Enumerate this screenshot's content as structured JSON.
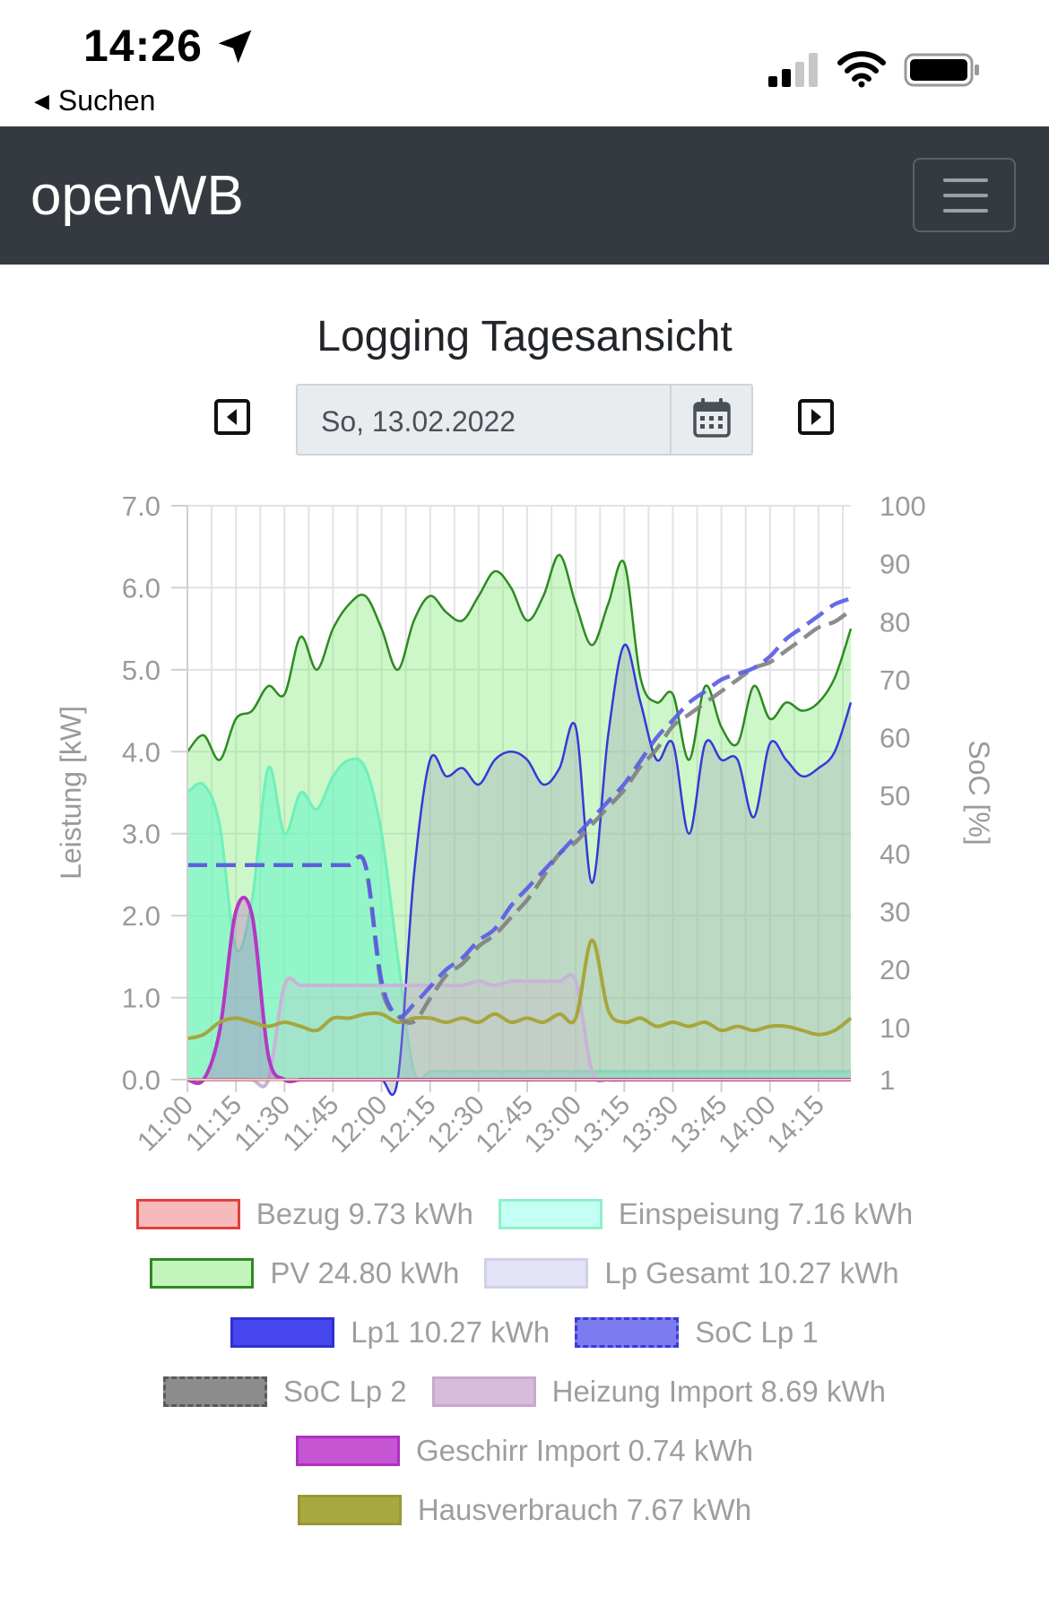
{
  "status_bar": {
    "time": "14:26",
    "back_label": "Suchen"
  },
  "navbar": {
    "brand": "openWB"
  },
  "page": {
    "title": "Logging Tagesansicht",
    "date_value": "So, 13.02.2022"
  },
  "chart_data": {
    "type": "line",
    "title": "",
    "ylabel": "Leistung [kW]",
    "y2label": "SoC [%]",
    "ylim": [
      0,
      7
    ],
    "y2ticks": [
      "100",
      "90",
      "80",
      "70",
      "60",
      "50",
      "40",
      "30",
      "20",
      "10",
      "1"
    ],
    "yticks": [
      "7.0",
      "6.0",
      "5.0",
      "4.0",
      "3.0",
      "2.0",
      "1.0",
      "0.0"
    ],
    "xticks": [
      "11:00",
      "11:15",
      "11:30",
      "11:45",
      "12:00",
      "12:15",
      "12:30",
      "12:45",
      "13:00",
      "13:15",
      "13:30",
      "13:45",
      "14:00",
      "14:15"
    ],
    "x_minutes_from_start": [
      0,
      5,
      10,
      15,
      20,
      25,
      30,
      35,
      40,
      45,
      50,
      55,
      60,
      65,
      70,
      75,
      80,
      85,
      90,
      95,
      100,
      105,
      110,
      115,
      120,
      125,
      130,
      135,
      140,
      145,
      150,
      155,
      160,
      165,
      170,
      175,
      180,
      185,
      190,
      195,
      200,
      205
    ],
    "series": [
      {
        "name": "Bezug 9.73 kWh",
        "unit": "kW",
        "color": "#e74c3c",
        "values": [
          0,
          0,
          0,
          0,
          0,
          0,
          0,
          0,
          0,
          0,
          0,
          0,
          0,
          0,
          0,
          0,
          0,
          0,
          0,
          0,
          0,
          0,
          0,
          0,
          0,
          0,
          0,
          0,
          0,
          0,
          0,
          0,
          0,
          0,
          0,
          0,
          0,
          0,
          0,
          0,
          0,
          0
        ]
      },
      {
        "name": "Einspeisung 7.16 kWh",
        "unit": "kW",
        "color": "#7ef2c8",
        "values": [
          3.5,
          3.6,
          3.1,
          1.6,
          2.2,
          3.8,
          3.0,
          3.5,
          3.3,
          3.7,
          3.9,
          3.8,
          3.0,
          1.5,
          0.1,
          0.1,
          0.1,
          0.1,
          0.1,
          0.1,
          0.1,
          0.1,
          0.1,
          0.1,
          0.1,
          0.1,
          0.1,
          0.1,
          0.1,
          0.1,
          0.1,
          0.1,
          0.1,
          0.1,
          0.1,
          0.1,
          0.1,
          0.1,
          0.1,
          0.1,
          0.1,
          0.1
        ]
      },
      {
        "name": "PV 24.80 kWh",
        "unit": "kW",
        "color": "#2e8b22",
        "values": [
          4.0,
          4.2,
          3.9,
          4.4,
          4.5,
          4.8,
          4.7,
          5.4,
          5.0,
          5.5,
          5.8,
          5.9,
          5.5,
          5.0,
          5.6,
          5.9,
          5.7,
          5.6,
          5.9,
          6.2,
          6.0,
          5.6,
          5.9,
          6.4,
          5.8,
          5.3,
          5.8,
          6.3,
          4.9,
          4.6,
          4.7,
          3.9,
          4.8,
          4.3,
          4.1,
          4.8,
          4.4,
          4.6,
          4.5,
          4.6,
          4.9,
          5.5
        ]
      },
      {
        "name": "Lp Gesamt 10.27 kWh",
        "unit": "kW",
        "color": "#c8c8f0",
        "values": [
          0,
          0,
          0,
          0,
          0,
          0,
          0,
          0,
          0,
          0,
          0,
          0,
          0,
          0,
          2.5,
          3.9,
          3.7,
          3.8,
          3.6,
          3.9,
          4.0,
          3.9,
          3.6,
          3.8,
          4.3,
          2.4,
          4.2,
          5.3,
          4.6,
          3.9,
          4.1,
          3.0,
          4.1,
          3.9,
          3.9,
          3.2,
          4.1,
          3.9,
          3.7,
          3.8,
          4.0,
          4.6
        ]
      },
      {
        "name": "Lp1 10.27 kWh",
        "unit": "kW",
        "color": "#3030e0",
        "values": [
          0,
          0,
          0,
          0,
          0,
          0,
          0,
          0,
          0,
          0,
          0,
          0,
          0,
          0,
          2.5,
          3.9,
          3.7,
          3.8,
          3.6,
          3.9,
          4.0,
          3.9,
          3.6,
          3.8,
          4.3,
          2.4,
          4.2,
          5.3,
          4.6,
          3.9,
          4.1,
          3.0,
          4.1,
          3.9,
          3.9,
          3.2,
          4.1,
          3.9,
          3.7,
          3.8,
          4.0,
          4.6
        ]
      },
      {
        "name": "SoC Lp 1",
        "unit": "%",
        "color": "#5a5ae6",
        "dashed": true,
        "values": [
          38,
          38,
          38,
          38,
          38,
          38,
          38,
          38,
          38,
          38,
          38,
          38,
          18,
          12,
          14,
          17,
          20,
          22,
          25,
          27,
          31,
          34,
          37,
          40,
          43,
          46,
          49,
          52,
          56,
          60,
          63,
          66,
          68,
          70,
          71,
          72,
          74,
          77,
          79,
          81,
          83,
          84
        ]
      },
      {
        "name": "SoC Lp 2",
        "unit": "%",
        "color": "#808080",
        "dashed": true,
        "values": [
          38,
          38,
          38,
          38,
          38,
          38,
          38,
          38,
          38,
          38,
          38,
          38,
          17,
          12,
          11,
          15,
          19,
          21,
          24,
          26,
          29,
          32,
          36,
          40,
          42,
          45,
          48,
          51,
          55,
          58,
          62,
          64,
          66,
          68,
          70,
          72,
          73,
          75,
          77,
          79,
          80,
          82
        ]
      },
      {
        "name": "Heizung Import 8.69 kWh",
        "unit": "kW",
        "color": "#c8a0c8",
        "values": [
          0,
          0,
          0,
          0,
          0,
          0,
          1.15,
          1.15,
          1.15,
          1.15,
          1.15,
          1.15,
          1.15,
          1.15,
          1.15,
          1.15,
          1.15,
          1.15,
          1.2,
          1.15,
          1.2,
          1.2,
          1.2,
          1.2,
          1.2,
          0.1,
          0,
          0,
          0,
          0,
          0,
          0,
          0,
          0,
          0,
          0,
          0,
          0,
          0,
          0,
          0,
          0
        ]
      },
      {
        "name": "Geschirr Import 0.74 kWh",
        "unit": "kW",
        "color": "#b030c0",
        "values": [
          0,
          0,
          0.6,
          2.05,
          2.0,
          0.3,
          0,
          0,
          0,
          0,
          0,
          0,
          0,
          0,
          0,
          0,
          0,
          0,
          0,
          0,
          0,
          0,
          0,
          0,
          0,
          0,
          0,
          0,
          0,
          0,
          0,
          0,
          0,
          0,
          0,
          0,
          0,
          0,
          0,
          0,
          0,
          0
        ]
      },
      {
        "name": "Hausverbrauch 7.67 kWh",
        "unit": "kW",
        "color": "#a0a030",
        "values": [
          0.5,
          0.55,
          0.7,
          0.75,
          0.7,
          0.65,
          0.7,
          0.65,
          0.6,
          0.75,
          0.75,
          0.8,
          0.8,
          0.7,
          0.75,
          0.75,
          0.7,
          0.75,
          0.7,
          0.8,
          0.7,
          0.75,
          0.7,
          0.8,
          0.75,
          1.7,
          0.85,
          0.7,
          0.75,
          0.65,
          0.7,
          0.65,
          0.7,
          0.6,
          0.65,
          0.6,
          0.65,
          0.65,
          0.6,
          0.55,
          0.6,
          0.75
        ]
      }
    ],
    "grid": true,
    "legend_position": "bottom"
  },
  "icons": {
    "prev": "caret-left-square-icon",
    "next": "caret-right-square-icon",
    "calendar": "calendar-icon",
    "menu": "hamburger-icon"
  }
}
